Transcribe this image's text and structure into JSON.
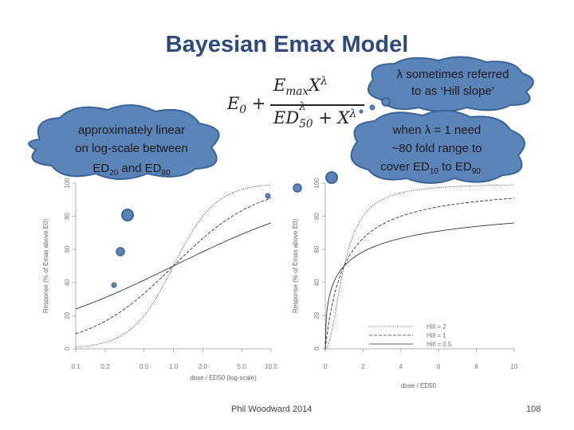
{
  "title": "Bayesian Emax Model",
  "formula": {
    "e0": "E",
    "e0_sub": "0",
    "plus": "+",
    "num_base": "E",
    "num_sub": "max",
    "num_x": "X",
    "num_sup": "λ",
    "den_ed": "ED",
    "den_ed_sub": "50",
    "den_ed_sup": "λ",
    "den_plus": "+",
    "den_x": "X",
    "den_x_sup": "λ"
  },
  "callouts": {
    "left": {
      "line1": "approximately linear",
      "line2": "on log-scale between",
      "line3_a": "ED",
      "line3_sub1": "20",
      "line3_b": " and ED",
      "line3_sub2": "80"
    },
    "top_right": {
      "line1": "λ sometimes referred",
      "line2": "to as ‘Hill slope’"
    },
    "right": {
      "line1": "when λ = 1 need",
      "line2": "~80 fold range to",
      "line3_a": "cover ED",
      "line3_sub1": "10",
      "line3_b": " to ED",
      "line3_sub2": "90"
    }
  },
  "left_plot": {
    "xlabel": "dose / ED50 (log-scale)",
    "ylabel": "Response (% of Emax above E0)",
    "yticks": [
      "0",
      "20",
      "40",
      "60",
      "80",
      "100"
    ],
    "xticks": [
      "0.1",
      "0.2",
      "0.5",
      "1.0",
      "2.0",
      "5.0",
      "10.0"
    ]
  },
  "right_plot": {
    "xlabel": "dose / ED50",
    "ylabel": "Response (% of Emax above E0)",
    "yticks": [
      "0",
      "20",
      "40",
      "60",
      "80",
      "100"
    ],
    "xticks": [
      "0",
      "2",
      "4",
      "6",
      "8",
      "10"
    ],
    "legend": [
      "Hill = 2",
      "Hill = 1",
      "Hill = 0.5"
    ]
  },
  "chart_data": [
    {
      "type": "line",
      "title": "",
      "xlabel": "dose / ED50 (log-scale)",
      "ylabel": "Response (% of Emax above E0)",
      "x_scale": "log",
      "xlim": [
        0.1,
        10
      ],
      "ylim": [
        0,
        100
      ],
      "series": [
        {
          "hill": 2,
          "x": [
            0.1,
            0.2,
            0.5,
            1.0,
            2.0,
            5.0,
            10.0
          ],
          "y": [
            1,
            4,
            20,
            50,
            80,
            96,
            99
          ]
        },
        {
          "hill": 1,
          "x": [
            0.1,
            0.2,
            0.5,
            1.0,
            2.0,
            5.0,
            10.0
          ],
          "y": [
            9,
            17,
            33,
            50,
            67,
            83,
            91
          ]
        },
        {
          "hill": 0.5,
          "x": [
            0.1,
            0.2,
            0.5,
            1.0,
            2.0,
            5.0,
            10.0
          ],
          "y": [
            24,
            31,
            41,
            50,
            59,
            69,
            76
          ]
        }
      ]
    },
    {
      "type": "line",
      "title": "",
      "xlabel": "dose / ED50",
      "ylabel": "Response (% of Emax above E0)",
      "xlim": [
        0,
        10
      ],
      "ylim": [
        0,
        100
      ],
      "legend_position": "bottom-right",
      "series": [
        {
          "name": "Hill = 2",
          "x": [
            0,
            0.5,
            1,
            2,
            4,
            6,
            8,
            10
          ],
          "y": [
            0,
            20,
            50,
            80,
            94,
            97,
            98,
            99
          ]
        },
        {
          "name": "Hill = 1",
          "x": [
            0,
            0.5,
            1,
            2,
            4,
            6,
            8,
            10
          ],
          "y": [
            0,
            33,
            50,
            67,
            80,
            86,
            89,
            91
          ]
        },
        {
          "name": "Hill = 0.5",
          "x": [
            0,
            0.5,
            1,
            2,
            4,
            6,
            8,
            10
          ],
          "y": [
            0,
            41,
            50,
            59,
            67,
            71,
            74,
            76
          ]
        }
      ]
    }
  ],
  "footer": "Phil Woodward 2014",
  "page_number": "108",
  "colors": {
    "title": "#2e4a7d",
    "bubble_fill": "#5b84b8",
    "bubble_stroke": "#3a6397",
    "line": "#333333",
    "axis": "#999999"
  }
}
